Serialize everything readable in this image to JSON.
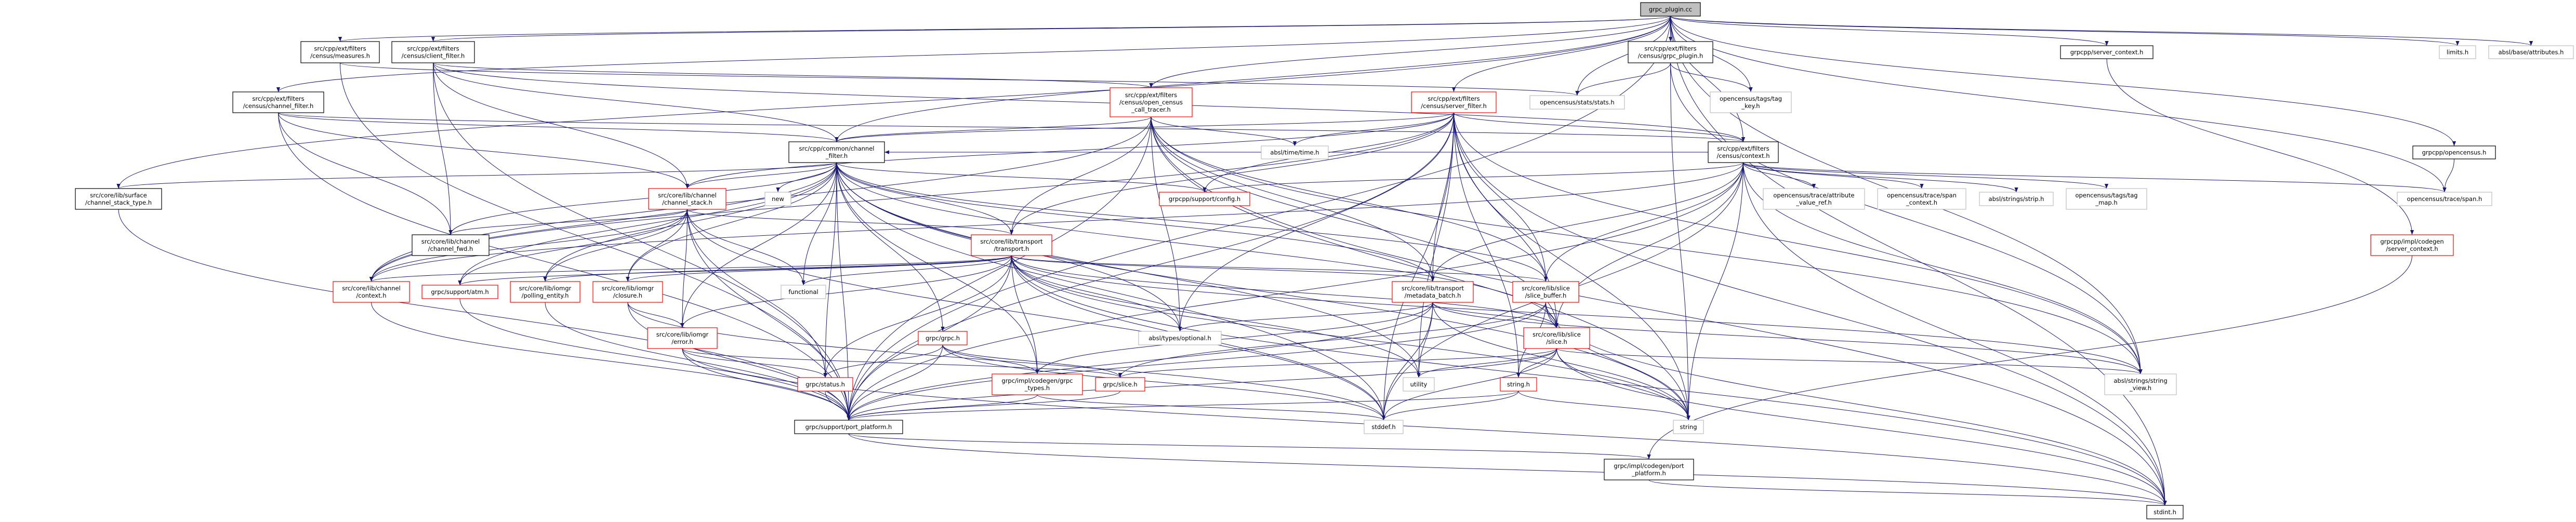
{
  "graph": {
    "edge_color": "#191970",
    "legend_colors": {
      "root_fill": "#bfbfbf",
      "documented_border": "#000000",
      "truncated_border": "#ff0000",
      "undocumented_border": "#bfbfbf"
    },
    "nodes": [
      {
        "id": "root",
        "kind": "root",
        "lines": [
          "grpc_plugin.cc"
        ]
      },
      {
        "id": "measures",
        "kind": "documented",
        "lines": [
          "src/cpp/ext/filters",
          "/census/measures.h"
        ]
      },
      {
        "id": "client_filter",
        "kind": "documented",
        "lines": [
          "src/cpp/ext/filters",
          "/census/client_filter.h"
        ]
      },
      {
        "id": "census_channel_filter",
        "kind": "documented",
        "lines": [
          "src/cpp/ext/filters",
          "/census/channel_filter.h"
        ]
      },
      {
        "id": "grpc_plugin_h",
        "kind": "documented",
        "lines": [
          "src/cpp/ext/filters",
          "/census/grpc_plugin.h"
        ]
      },
      {
        "id": "server_context",
        "kind": "documented",
        "lines": [
          "grpcpp/server_context.h"
        ]
      },
      {
        "id": "limits",
        "kind": "undocumented",
        "lines": [
          "limits.h"
        ]
      },
      {
        "id": "attributes",
        "kind": "undocumented",
        "lines": [
          "absl/base/attributes.h"
        ]
      },
      {
        "id": "open_census_call_tracer",
        "kind": "truncated",
        "lines": [
          "src/cpp/ext/filters",
          "/census/open_census",
          "_call_tracer.h"
        ]
      },
      {
        "id": "server_filter",
        "kind": "truncated",
        "lines": [
          "src/cpp/ext/filters",
          "/census/server_filter.h"
        ]
      },
      {
        "id": "stats",
        "kind": "undocumented",
        "lines": [
          "opencensus/stats/stats.h"
        ]
      },
      {
        "id": "tag_key",
        "kind": "undocumented",
        "lines": [
          "opencensus/tags/tag",
          "_key.h"
        ]
      },
      {
        "id": "common_channel_filter",
        "kind": "documented",
        "lines": [
          "src/cpp/common/channel",
          "_filter.h"
        ]
      },
      {
        "id": "time",
        "kind": "undocumented",
        "lines": [
          "absl/time/time.h"
        ]
      },
      {
        "id": "context",
        "kind": "documented",
        "lines": [
          "src/cpp/ext/filters",
          "/census/context.h"
        ]
      },
      {
        "id": "opencensus",
        "kind": "documented",
        "lines": [
          "grpcpp/opencensus.h"
        ]
      },
      {
        "id": "channel_stack_type",
        "kind": "documented",
        "lines": [
          "src/core/lib/surface",
          "/channel_stack_type.h"
        ]
      },
      {
        "id": "channel_stack",
        "kind": "truncated",
        "lines": [
          "src/core/lib/channel",
          "/channel_stack.h"
        ]
      },
      {
        "id": "new",
        "kind": "undocumented",
        "lines": [
          "new"
        ]
      },
      {
        "id": "config",
        "kind": "truncated",
        "lines": [
          "grpcpp/support/config.h"
        ]
      },
      {
        "id": "attribute_value_ref",
        "kind": "undocumented",
        "lines": [
          "opencensus/trace/attribute",
          "_value_ref.h"
        ]
      },
      {
        "id": "span_context",
        "kind": "undocumented",
        "lines": [
          "opencensus/trace/span",
          "_context.h"
        ]
      },
      {
        "id": "strip",
        "kind": "undocumented",
        "lines": [
          "absl/strings/strip.h"
        ]
      },
      {
        "id": "tag_map",
        "kind": "undocumented",
        "lines": [
          "opencensus/tags/tag",
          "_map.h"
        ]
      },
      {
        "id": "span",
        "kind": "undocumented",
        "lines": [
          "opencensus/trace/span.h"
        ]
      },
      {
        "id": "channel_fwd",
        "kind": "documented",
        "lines": [
          "src/core/lib/channel",
          "/channel_fwd.h"
        ]
      },
      {
        "id": "transport",
        "kind": "truncated",
        "lines": [
          "src/core/lib/transport",
          "/transport.h"
        ]
      },
      {
        "id": "codegen_server_context",
        "kind": "truncated",
        "lines": [
          "grpcpp/impl/codegen",
          "/server_context.h"
        ]
      },
      {
        "id": "channel_context",
        "kind": "truncated",
        "lines": [
          "src/core/lib/channel",
          "/context.h"
        ]
      },
      {
        "id": "atm",
        "kind": "truncated",
        "lines": [
          "grpc/support/atm.h"
        ]
      },
      {
        "id": "polling_entity",
        "kind": "truncated",
        "lines": [
          "src/core/lib/iomgr",
          "/polling_entity.h"
        ]
      },
      {
        "id": "closure",
        "kind": "truncated",
        "lines": [
          "src/core/lib/iomgr",
          "/closure.h"
        ]
      },
      {
        "id": "functional",
        "kind": "undocumented",
        "lines": [
          "functional"
        ]
      },
      {
        "id": "metadata_batch",
        "kind": "truncated",
        "lines": [
          "src/core/lib/transport",
          "/metadata_batch.h"
        ]
      },
      {
        "id": "slice_buffer",
        "kind": "truncated",
        "lines": [
          "src/core/lib/slice",
          "/slice_buffer.h"
        ]
      },
      {
        "id": "error",
        "kind": "truncated",
        "lines": [
          "src/core/lib/iomgr",
          "/error.h"
        ]
      },
      {
        "id": "grpc_h",
        "kind": "truncated",
        "lines": [
          "grpc/grpc.h"
        ]
      },
      {
        "id": "optional",
        "kind": "undocumented",
        "lines": [
          "absl/types/optional.h"
        ]
      },
      {
        "id": "core_slice",
        "kind": "truncated",
        "lines": [
          "src/core/lib/slice",
          "/slice.h"
        ]
      },
      {
        "id": "status",
        "kind": "truncated",
        "lines": [
          "grpc/status.h"
        ]
      },
      {
        "id": "grpc_types",
        "kind": "truncated",
        "lines": [
          "grpc/impl/codegen/grpc",
          "_types.h"
        ]
      },
      {
        "id": "grpc_slice",
        "kind": "truncated",
        "lines": [
          "grpc/slice.h"
        ]
      },
      {
        "id": "utility",
        "kind": "undocumented",
        "lines": [
          "utility"
        ]
      },
      {
        "id": "string_h",
        "kind": "truncated",
        "lines": [
          "string.h"
        ]
      },
      {
        "id": "string_view",
        "kind": "undocumented",
        "lines": [
          "absl/strings/string",
          "_view.h"
        ]
      },
      {
        "id": "port_platform",
        "kind": "documented",
        "lines": [
          "grpc/support/port_platform.h"
        ]
      },
      {
        "id": "stddef",
        "kind": "undocumented",
        "lines": [
          "stddef.h"
        ]
      },
      {
        "id": "string",
        "kind": "undocumented",
        "lines": [
          "string"
        ]
      },
      {
        "id": "codegen_port_platform",
        "kind": "documented",
        "lines": [
          "grpc/impl/codegen/port",
          "_platform.h"
        ]
      },
      {
        "id": "stdint",
        "kind": "documented",
        "lines": [
          "stdint.h"
        ]
      }
    ],
    "edges": [
      [
        "root",
        "measures"
      ],
      [
        "root",
        "client_filter"
      ],
      [
        "root",
        "census_channel_filter"
      ],
      [
        "root",
        "open_census_call_tracer"
      ],
      [
        "root",
        "server_filter"
      ],
      [
        "root",
        "grpc_plugin_h"
      ],
      [
        "root",
        "stats"
      ],
      [
        "root",
        "tag_key"
      ],
      [
        "root",
        "context"
      ],
      [
        "root",
        "server_context"
      ],
      [
        "root",
        "limits"
      ],
      [
        "root",
        "attributes"
      ],
      [
        "root",
        "opencensus"
      ],
      [
        "root",
        "span"
      ],
      [
        "root",
        "port_platform"
      ],
      [
        "root",
        "channel_stack_type"
      ],
      [
        "root",
        "common_channel_filter"
      ],
      [
        "root",
        "string_view"
      ],
      [
        "root",
        "stdint"
      ],
      [
        "measures",
        "stats"
      ],
      [
        "measures",
        "port_platform"
      ],
      [
        "client_filter",
        "open_census_call_tracer"
      ],
      [
        "client_filter",
        "channel_fwd"
      ],
      [
        "client_filter",
        "channel_stack"
      ],
      [
        "client_filter",
        "port_platform"
      ],
      [
        "client_filter",
        "context"
      ],
      [
        "client_filter",
        "common_channel_filter"
      ],
      [
        "census_channel_filter",
        "common_channel_filter"
      ],
      [
        "census_channel_filter",
        "channel_fwd"
      ],
      [
        "census_channel_filter",
        "channel_stack"
      ],
      [
        "census_channel_filter",
        "port_platform"
      ],
      [
        "census_channel_filter",
        "context"
      ],
      [
        "open_census_call_tracer",
        "common_channel_filter"
      ],
      [
        "open_census_call_tracer",
        "transport"
      ],
      [
        "open_census_call_tracer",
        "time"
      ],
      [
        "open_census_call_tracer",
        "metadata_batch"
      ],
      [
        "open_census_call_tracer",
        "slice_buffer"
      ],
      [
        "open_census_call_tracer",
        "core_slice"
      ],
      [
        "open_census_call_tracer",
        "channel_context"
      ],
      [
        "open_census_call_tracer",
        "port_platform"
      ],
      [
        "open_census_call_tracer",
        "optional"
      ],
      [
        "open_census_call_tracer",
        "string_view"
      ],
      [
        "open_census_call_tracer",
        "stdint"
      ],
      [
        "open_census_call_tracer",
        "string"
      ],
      [
        "server_filter",
        "common_channel_filter"
      ],
      [
        "server_filter",
        "context"
      ],
      [
        "server_filter",
        "time"
      ],
      [
        "server_filter",
        "config"
      ],
      [
        "server_filter",
        "metadata_batch"
      ],
      [
        "server_filter",
        "slice_buffer"
      ],
      [
        "server_filter",
        "core_slice"
      ],
      [
        "server_filter",
        "string_h"
      ],
      [
        "server_filter",
        "port_platform"
      ],
      [
        "server_filter",
        "stdint"
      ],
      [
        "server_filter",
        "string_view"
      ],
      [
        "server_filter",
        "channel_stack"
      ],
      [
        "server_filter",
        "transport"
      ],
      [
        "server_filter",
        "channel_context"
      ],
      [
        "server_filter",
        "stddef"
      ],
      [
        "server_filter",
        "utility"
      ],
      [
        "server_filter",
        "optional"
      ],
      [
        "server_filter",
        "string"
      ],
      [
        "grpc_plugin_h",
        "stats"
      ],
      [
        "grpc_plugin_h",
        "tag_key"
      ],
      [
        "grpc_plugin_h",
        "string"
      ],
      [
        "grpc_plugin_h",
        "string_view"
      ],
      [
        "context",
        "attribute_value_ref"
      ],
      [
        "context",
        "span_context"
      ],
      [
        "context",
        "strip"
      ],
      [
        "context",
        "tag_map"
      ],
      [
        "context",
        "span"
      ],
      [
        "context",
        "string_view"
      ],
      [
        "context",
        "stdint"
      ],
      [
        "context",
        "core_slice"
      ],
      [
        "context",
        "slice_buffer"
      ],
      [
        "context",
        "metadata_batch"
      ],
      [
        "context",
        "port_platform"
      ],
      [
        "context",
        "common_channel_filter"
      ],
      [
        "context",
        "channel_context"
      ],
      [
        "context",
        "config"
      ],
      [
        "context",
        "string"
      ],
      [
        "context",
        "stddef"
      ],
      [
        "server_context",
        "codegen_server_context"
      ],
      [
        "opencensus",
        "span"
      ],
      [
        "codegen_server_context",
        "codegen_port_platform"
      ],
      [
        "common_channel_filter",
        "channel_stack_type"
      ],
      [
        "common_channel_filter",
        "channel_stack"
      ],
      [
        "common_channel_filter",
        "new"
      ],
      [
        "common_channel_filter",
        "functional"
      ],
      [
        "common_channel_filter",
        "transport"
      ],
      [
        "common_channel_filter",
        "config"
      ],
      [
        "common_channel_filter",
        "channel_fwd"
      ],
      [
        "common_channel_filter",
        "channel_context"
      ],
      [
        "common_channel_filter",
        "atm"
      ],
      [
        "common_channel_filter",
        "polling_entity"
      ],
      [
        "common_channel_filter",
        "closure"
      ],
      [
        "common_channel_filter",
        "error"
      ],
      [
        "common_channel_filter",
        "grpc_h"
      ],
      [
        "common_channel_filter",
        "status"
      ],
      [
        "common_channel_filter",
        "grpc_types"
      ],
      [
        "common_channel_filter",
        "core_slice"
      ],
      [
        "common_channel_filter",
        "metadata_batch"
      ],
      [
        "common_channel_filter",
        "slice_buffer"
      ],
      [
        "common_channel_filter",
        "optional"
      ],
      [
        "common_channel_filter",
        "stddef"
      ],
      [
        "common_channel_filter",
        "string"
      ],
      [
        "common_channel_filter",
        "utility"
      ],
      [
        "common_channel_filter",
        "port_platform"
      ],
      [
        "channel_stack",
        "channel_fwd"
      ],
      [
        "channel_stack",
        "channel_context"
      ],
      [
        "channel_stack",
        "polling_entity"
      ],
      [
        "channel_stack",
        "closure"
      ],
      [
        "channel_stack",
        "error"
      ],
      [
        "channel_stack",
        "functional"
      ],
      [
        "channel_stack",
        "transport"
      ],
      [
        "channel_stack",
        "port_platform"
      ],
      [
        "channel_stack",
        "stddef"
      ],
      [
        "channel_stack",
        "atm"
      ],
      [
        "channel_stack",
        "status"
      ],
      [
        "transport",
        "channel_context"
      ],
      [
        "transport",
        "atm"
      ],
      [
        "transport",
        "polling_entity"
      ],
      [
        "transport",
        "closure"
      ],
      [
        "transport",
        "error"
      ],
      [
        "transport",
        "functional"
      ],
      [
        "transport",
        "metadata_batch"
      ],
      [
        "transport",
        "slice_buffer"
      ],
      [
        "transport",
        "core_slice"
      ],
      [
        "transport",
        "grpc_types"
      ],
      [
        "transport",
        "status"
      ],
      [
        "transport",
        "port_platform"
      ],
      [
        "transport",
        "string_view"
      ],
      [
        "transport",
        "optional"
      ],
      [
        "transport",
        "stddef"
      ],
      [
        "transport",
        "string"
      ],
      [
        "transport",
        "stdint"
      ],
      [
        "transport",
        "utility"
      ],
      [
        "metadata_batch",
        "core_slice"
      ],
      [
        "metadata_batch",
        "utility"
      ],
      [
        "metadata_batch",
        "optional"
      ],
      [
        "metadata_batch",
        "string_view"
      ],
      [
        "metadata_batch",
        "port_platform"
      ],
      [
        "metadata_batch",
        "string"
      ],
      [
        "metadata_batch",
        "stddef"
      ],
      [
        "metadata_batch",
        "grpc_types"
      ],
      [
        "slice_buffer",
        "core_slice"
      ],
      [
        "slice_buffer",
        "string_h"
      ],
      [
        "slice_buffer",
        "grpc_slice"
      ],
      [
        "slice_buffer",
        "port_platform"
      ],
      [
        "slice_buffer",
        "string"
      ],
      [
        "slice_buffer",
        "stdint"
      ],
      [
        "core_slice",
        "grpc_slice"
      ],
      [
        "core_slice",
        "string_h"
      ],
      [
        "core_slice",
        "utility"
      ],
      [
        "core_slice",
        "string"
      ],
      [
        "core_slice",
        "string_view"
      ],
      [
        "core_slice",
        "port_platform"
      ],
      [
        "core_slice",
        "stddef"
      ],
      [
        "core_slice",
        "stdint"
      ],
      [
        "string_h",
        "port_platform"
      ],
      [
        "string_h",
        "stddef"
      ],
      [
        "string_h",
        "string"
      ],
      [
        "channel_stack_type",
        "port_platform"
      ],
      [
        "channel_context",
        "port_platform"
      ],
      [
        "atm",
        "port_platform"
      ],
      [
        "polling_entity",
        "port_platform"
      ],
      [
        "closure",
        "error"
      ],
      [
        "closure",
        "port_platform"
      ],
      [
        "closure",
        "stddef"
      ],
      [
        "error",
        "status"
      ],
      [
        "error",
        "port_platform"
      ],
      [
        "error",
        "grpc_slice"
      ],
      [
        "error",
        "stdint"
      ],
      [
        "grpc_h",
        "status"
      ],
      [
        "grpc_h",
        "grpc_types"
      ],
      [
        "grpc_h",
        "grpc_slice"
      ],
      [
        "grpc_h",
        "port_platform"
      ],
      [
        "grpc_h",
        "stddef"
      ],
      [
        "grpc_types",
        "port_platform"
      ],
      [
        "grpc_types",
        "stddef"
      ],
      [
        "grpc_slice",
        "port_platform"
      ],
      [
        "status",
        "port_platform"
      ],
      [
        "port_platform",
        "codegen_port_platform"
      ],
      [
        "port_platform",
        "stdint"
      ],
      [
        "codegen_port_platform",
        "stdint"
      ]
    ]
  }
}
